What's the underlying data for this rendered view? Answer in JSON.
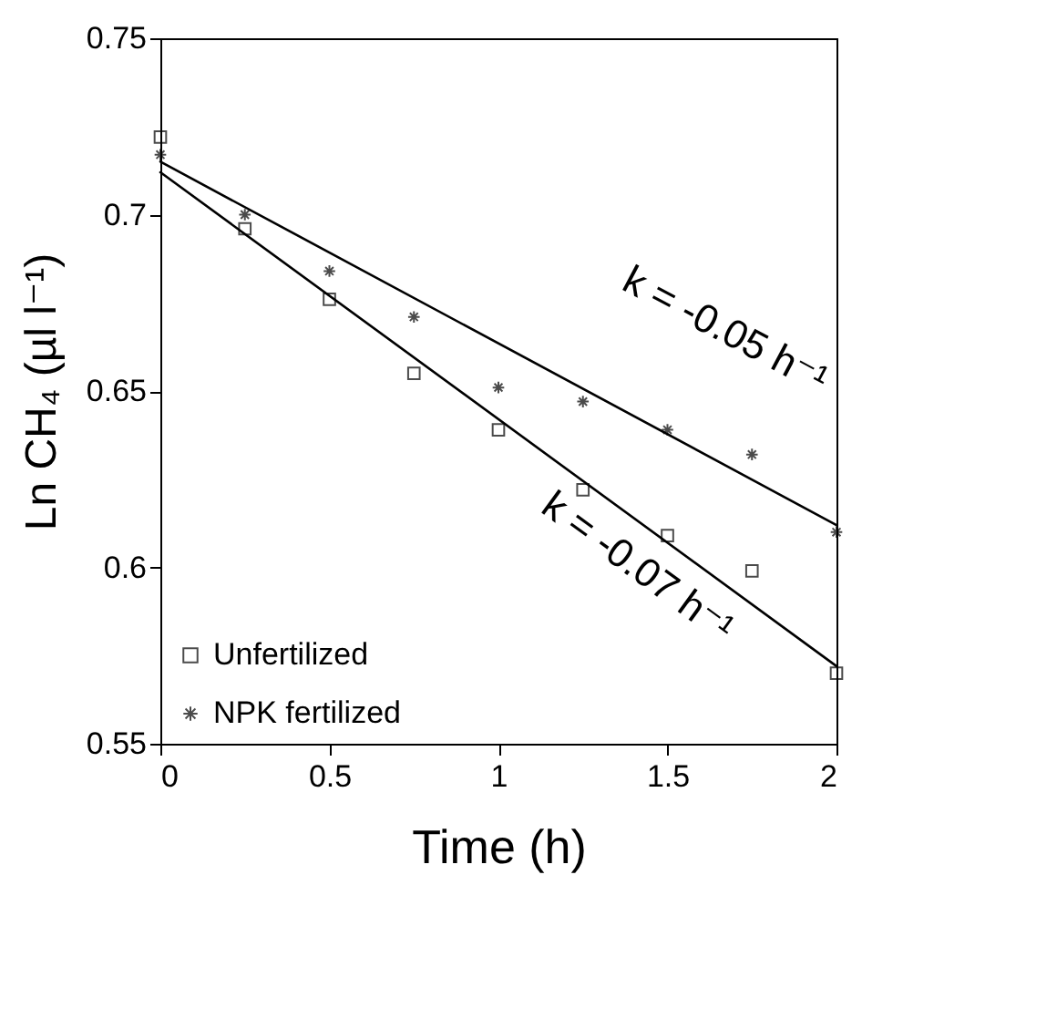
{
  "chart_data": {
    "type": "scatter",
    "xlabel": "Time (h)",
    "ylabel": "Ln CH₄ (µl l⁻¹)",
    "xlim": [
      0,
      2
    ],
    "xticks": [
      0,
      0.5,
      1,
      1.5,
      2
    ],
    "ylim": [
      0.55,
      0.75
    ],
    "yticks": [
      0.55,
      0.6,
      0.65,
      0.7,
      0.75
    ],
    "grid": false,
    "legend": "bottom left",
    "series": [
      {
        "name": "Unfertilized",
        "color": "#000000",
        "marker": "square",
        "x": [
          0,
          0.25,
          0.5,
          0.75,
          1,
          1.25,
          1.5,
          1.75,
          2
        ],
        "values": [
          0.722,
          0.696,
          0.676,
          0.655,
          0.639,
          0.622,
          0.609,
          0.599,
          0.57
        ]
      },
      {
        "name": "NPK fertilized",
        "color": "#000000",
        "marker": "cross",
        "x": [
          0,
          0.25,
          0.5,
          0.75,
          1,
          1.25,
          1.5,
          1.75,
          2
        ],
        "values": [
          0.717,
          0.7,
          0.684,
          0.671,
          0.651,
          0.647,
          0.639,
          0.632,
          0.61
        ]
      },
      {
        "type": "line",
        "color": "#000000",
        "marker": "none",
        "x": [
          0,
          2
        ],
        "values": [
          0.712,
          0.572
        ]
      },
      {
        "type": "line",
        "color": "#000000",
        "marker": "none",
        "x": [
          0,
          2
        ],
        "values": [
          0.715,
          0.612
        ]
      }
    ],
    "annotations": [
      "k = -0.05 h⁻¹",
      "k = -0.07 h⁻¹"
    ]
  }
}
